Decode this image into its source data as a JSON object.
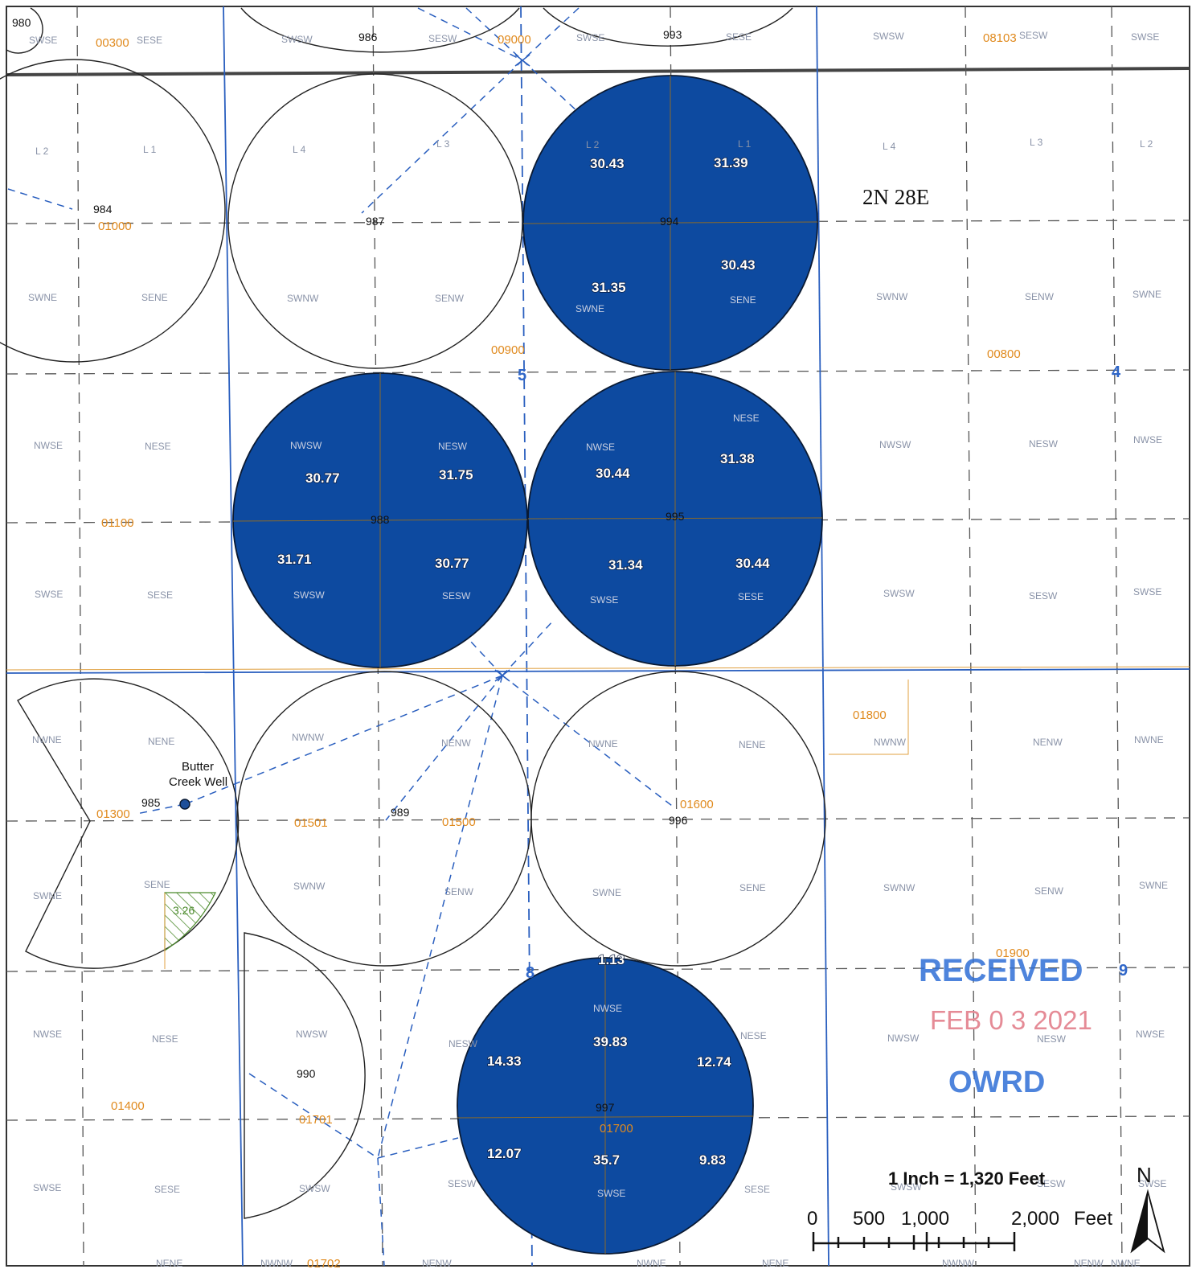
{
  "township": "2N 28E",
  "colors": {
    "pivot_fill": "#0d4aa0",
    "section_line": "#2a5fbf",
    "taxlot_text": "#e08a1e",
    "grid_dash": "#555555",
    "green_hatch": "#4a8a2a"
  },
  "section_numbers": [
    "5",
    "4",
    "8",
    "9"
  ],
  "pivot_ids": {
    "p980": "980",
    "p984": "984",
    "p985": "985",
    "p986": "986",
    "p987": "987",
    "p988": "988",
    "p989": "989",
    "p990": "990",
    "p993": "993",
    "p994": "994",
    "p995": "995",
    "p996": "996",
    "p997": "997"
  },
  "acreage_labels": {
    "p994": [
      "30.43",
      "31.39",
      "30.43",
      "31.35"
    ],
    "p988": [
      "30.77",
      "31.75",
      "31.71",
      "30.77"
    ],
    "p995": [
      "30.44",
      "31.38",
      "31.34",
      "30.44"
    ],
    "p997": [
      "39.83",
      "14.33",
      "12.74",
      "12.07",
      "35.7",
      "9.83"
    ],
    "p997_top": "1.13"
  },
  "taxlots": [
    "00300",
    "09000",
    "08103",
    "01000",
    "00900",
    "00800",
    "01100",
    "01800",
    "01300",
    "01501",
    "01500",
    "01600",
    "01900",
    "01400",
    "01701",
    "01700",
    "01702"
  ],
  "lot_labels": [
    "L 2",
    "L 1",
    "L 4",
    "L 3",
    "L 2",
    "L 1",
    "L 4",
    "L 3",
    "L 2"
  ],
  "qq_labels": {
    "row0": [
      "SWSE",
      "SESE",
      "SWSW",
      "SESW",
      "SWSE",
      "SESE",
      "SWSW",
      "SESW",
      "SWSE"
    ],
    "row2": [
      "SWNE",
      "SENE",
      "SWNW",
      "SENW",
      "SWNE",
      "SENE",
      "SWNW",
      "SENW",
      "SWNE"
    ],
    "row3": [
      "NWSE",
      "NESE",
      "NWSW",
      "NESW",
      "NWSE",
      "NESE",
      "NWSW",
      "NESW",
      "NWSE"
    ],
    "row4": [
      "SWSE",
      "SESE",
      "SWSW",
      "SESW",
      "SWSE",
      "SESE",
      "SWSW",
      "SESW",
      "SWSE"
    ],
    "row5": [
      "NWNE",
      "NENE",
      "NWNW",
      "NENW",
      "NWNE",
      "NENE",
      "NWNW",
      "NENW",
      "NWNE"
    ],
    "row6": [
      "SWNE",
      "SENE",
      "SWNW",
      "SENW",
      "SWNE",
      "SENE",
      "SWNW",
      "SENW",
      "SWNE"
    ],
    "row7": [
      "NWSE",
      "NESE",
      "NWSW",
      "NESW",
      "NWSE",
      "NESE",
      "NWSW",
      "NESW",
      "NWSE"
    ],
    "row8": [
      "SWSE",
      "SESE",
      "SWSW",
      "SESW",
      "SWSE",
      "SESE",
      "SWSW",
      "SESW",
      "SWSE"
    ],
    "row9": [
      "NENE",
      "NWNW",
      "NENW",
      "NWNE",
      "NENE",
      "NWNW",
      "NENW",
      "NWNE"
    ]
  },
  "well": {
    "name": "Butter Creek Well"
  },
  "green_parcel_label": "3.26",
  "stamp": {
    "received": "RECEIVED",
    "date": "FEB 0 3 2021",
    "agency": "OWRD"
  },
  "scale": {
    "title": "1 Inch = 1,320 Feet",
    "labels": [
      "0",
      "500",
      "1,000",
      "2,000",
      "Feet"
    ]
  },
  "north_label": "N"
}
